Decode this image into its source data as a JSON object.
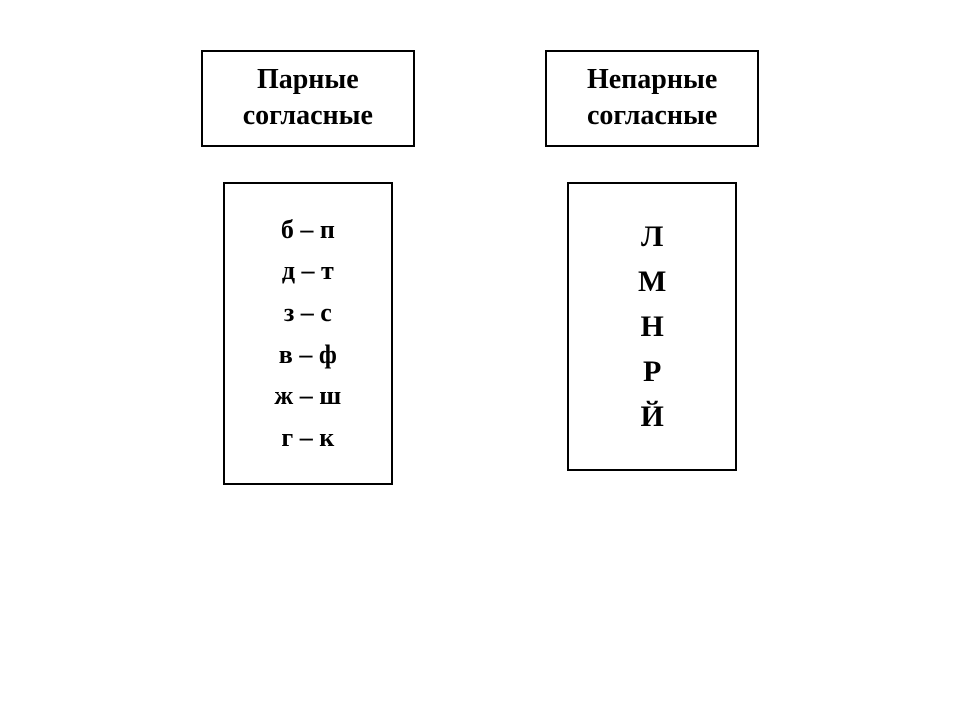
{
  "diagram": {
    "type": "infographic",
    "background_color": "#ffffff",
    "border_color": "#000000",
    "border_width": 2,
    "font_family": "Times New Roman",
    "font_weight": "bold",
    "left": {
      "header": {
        "line1": "Парные",
        "line2": "согласные",
        "fontsize": 28
      },
      "content": {
        "fontsize": 26,
        "pairs": [
          {
            "a": "б",
            "sep": "–",
            "b": "п"
          },
          {
            "a": "д",
            "sep": "–",
            "b": "т"
          },
          {
            "a": "з",
            "sep": "–",
            "b": "с"
          },
          {
            "a": "в",
            "sep": "–",
            "b": "ф"
          },
          {
            "a": "ж",
            "sep": "–",
            "b": "ш"
          },
          {
            "a": "г",
            "sep": "–",
            "b": "к"
          }
        ]
      }
    },
    "right": {
      "header": {
        "line1": "Непарные",
        "line2": "согласные",
        "fontsize": 28
      },
      "content": {
        "fontsize": 30,
        "letters": [
          "Л",
          "М",
          "Н",
          "Р",
          "Й"
        ]
      }
    }
  }
}
